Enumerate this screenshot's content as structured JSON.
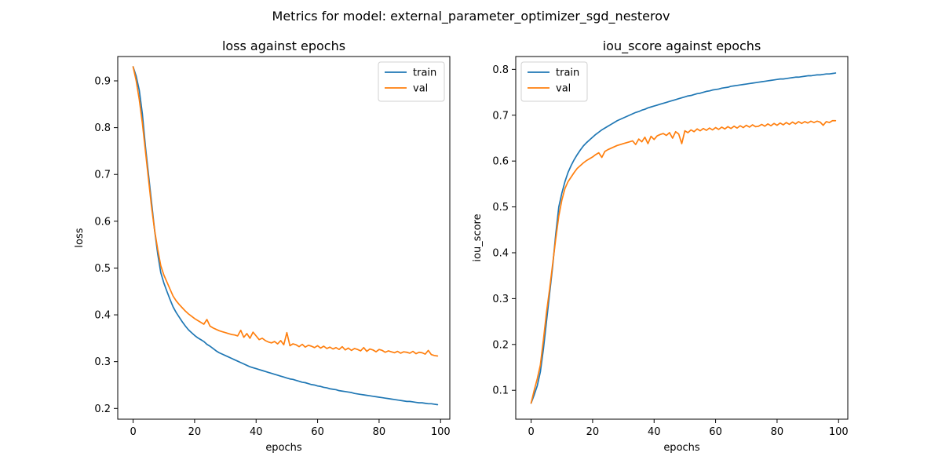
{
  "figure": {
    "suptitle": "Metrics for model: external_parameter_optimizer_sgd_nesterov"
  },
  "chart_data": [
    {
      "type": "line",
      "title": "loss against epochs",
      "xlabel": "epochs",
      "ylabel": "loss",
      "xlim": [
        -5,
        103
      ],
      "ylim": [
        0.177,
        0.952
      ],
      "xticks": [
        0,
        20,
        40,
        60,
        80,
        100
      ],
      "yticks": [
        0.2,
        0.3,
        0.4,
        0.5,
        0.6,
        0.7,
        0.8,
        0.9
      ],
      "legend_position": "upper right",
      "grid": false,
      "series": [
        {
          "name": "train",
          "color": "#1f77b4",
          "x": [
            0,
            1,
            2,
            3,
            4,
            5,
            6,
            7,
            8,
            9,
            10,
            11,
            12,
            13,
            14,
            15,
            16,
            17,
            18,
            19,
            20,
            21,
            22,
            23,
            24,
            25,
            26,
            27,
            28,
            29,
            30,
            31,
            32,
            33,
            34,
            35,
            36,
            37,
            38,
            39,
            40,
            41,
            42,
            43,
            44,
            45,
            46,
            47,
            48,
            49,
            50,
            51,
            52,
            53,
            54,
            55,
            56,
            57,
            58,
            59,
            60,
            61,
            62,
            63,
            64,
            65,
            66,
            67,
            68,
            69,
            70,
            71,
            72,
            73,
            74,
            75,
            76,
            77,
            78,
            79,
            80,
            81,
            82,
            83,
            84,
            85,
            86,
            87,
            88,
            89,
            90,
            91,
            92,
            93,
            94,
            95,
            96,
            97,
            98,
            99
          ],
          "values": [
            0.93,
            0.91,
            0.88,
            0.83,
            0.76,
            0.7,
            0.64,
            0.58,
            0.53,
            0.49,
            0.468,
            0.45,
            0.433,
            0.417,
            0.405,
            0.395,
            0.385,
            0.376,
            0.368,
            0.362,
            0.356,
            0.351,
            0.347,
            0.343,
            0.337,
            0.333,
            0.328,
            0.323,
            0.319,
            0.316,
            0.313,
            0.31,
            0.307,
            0.304,
            0.301,
            0.298,
            0.295,
            0.292,
            0.289,
            0.287,
            0.285,
            0.283,
            0.281,
            0.279,
            0.277,
            0.275,
            0.273,
            0.271,
            0.269,
            0.267,
            0.265,
            0.263,
            0.262,
            0.26,
            0.258,
            0.256,
            0.255,
            0.253,
            0.251,
            0.25,
            0.248,
            0.247,
            0.245,
            0.244,
            0.242,
            0.241,
            0.24,
            0.238,
            0.237,
            0.236,
            0.235,
            0.234,
            0.232,
            0.231,
            0.23,
            0.229,
            0.228,
            0.227,
            0.226,
            0.225,
            0.224,
            0.223,
            0.222,
            0.221,
            0.22,
            0.219,
            0.218,
            0.217,
            0.216,
            0.215,
            0.215,
            0.214,
            0.213,
            0.212,
            0.212,
            0.211,
            0.21,
            0.21,
            0.209,
            0.208
          ]
        },
        {
          "name": "val",
          "color": "#ff7f0e",
          "x": [
            0,
            1,
            2,
            3,
            4,
            5,
            6,
            7,
            8,
            9,
            10,
            11,
            12,
            13,
            14,
            15,
            16,
            17,
            18,
            19,
            20,
            21,
            22,
            23,
            24,
            25,
            26,
            27,
            28,
            29,
            30,
            31,
            32,
            33,
            34,
            35,
            36,
            37,
            38,
            39,
            40,
            41,
            42,
            43,
            44,
            45,
            46,
            47,
            48,
            49,
            50,
            51,
            52,
            53,
            54,
            55,
            56,
            57,
            58,
            59,
            60,
            61,
            62,
            63,
            64,
            65,
            66,
            67,
            68,
            69,
            70,
            71,
            72,
            73,
            74,
            75,
            76,
            77,
            78,
            79,
            80,
            81,
            82,
            83,
            84,
            85,
            86,
            87,
            88,
            89,
            90,
            91,
            92,
            93,
            94,
            95,
            96,
            97,
            98,
            99
          ],
          "values": [
            0.93,
            0.9,
            0.86,
            0.81,
            0.75,
            0.69,
            0.63,
            0.58,
            0.54,
            0.505,
            0.485,
            0.47,
            0.455,
            0.44,
            0.43,
            0.422,
            0.415,
            0.408,
            0.402,
            0.397,
            0.392,
            0.388,
            0.384,
            0.38,
            0.39,
            0.376,
            0.372,
            0.369,
            0.366,
            0.364,
            0.362,
            0.36,
            0.358,
            0.357,
            0.355,
            0.367,
            0.352,
            0.36,
            0.35,
            0.363,
            0.355,
            0.347,
            0.35,
            0.345,
            0.342,
            0.34,
            0.343,
            0.338,
            0.345,
            0.336,
            0.362,
            0.334,
            0.338,
            0.336,
            0.332,
            0.337,
            0.331,
            0.335,
            0.333,
            0.33,
            0.334,
            0.329,
            0.333,
            0.328,
            0.331,
            0.327,
            0.33,
            0.326,
            0.332,
            0.325,
            0.329,
            0.324,
            0.328,
            0.326,
            0.323,
            0.33,
            0.322,
            0.327,
            0.325,
            0.321,
            0.326,
            0.324,
            0.32,
            0.323,
            0.321,
            0.319,
            0.322,
            0.318,
            0.321,
            0.32,
            0.318,
            0.322,
            0.317,
            0.32,
            0.319,
            0.316,
            0.324,
            0.315,
            0.313,
            0.312
          ]
        }
      ]
    },
    {
      "type": "line",
      "title": "iou_score against epochs",
      "xlabel": "epochs",
      "ylabel": "iou_score",
      "xlim": [
        -5,
        103
      ],
      "ylim": [
        0.037,
        0.828
      ],
      "xticks": [
        0,
        20,
        40,
        60,
        80,
        100
      ],
      "yticks": [
        0.1,
        0.2,
        0.3,
        0.4,
        0.5,
        0.6,
        0.7,
        0.8
      ],
      "legend_position": "upper left",
      "grid": false,
      "series": [
        {
          "name": "train",
          "color": "#1f77b4",
          "x": [
            0,
            1,
            2,
            3,
            4,
            5,
            6,
            7,
            8,
            9,
            10,
            11,
            12,
            13,
            14,
            15,
            16,
            17,
            18,
            19,
            20,
            21,
            22,
            23,
            24,
            25,
            26,
            27,
            28,
            29,
            30,
            31,
            32,
            33,
            34,
            35,
            36,
            37,
            38,
            39,
            40,
            41,
            42,
            43,
            44,
            45,
            46,
            47,
            48,
            49,
            50,
            51,
            52,
            53,
            54,
            55,
            56,
            57,
            58,
            59,
            60,
            61,
            62,
            63,
            64,
            65,
            66,
            67,
            68,
            69,
            70,
            71,
            72,
            73,
            74,
            75,
            76,
            77,
            78,
            79,
            80,
            81,
            82,
            83,
            84,
            85,
            86,
            87,
            88,
            89,
            90,
            91,
            92,
            93,
            94,
            95,
            96,
            97,
            98,
            99
          ],
          "values": [
            0.072,
            0.09,
            0.11,
            0.14,
            0.19,
            0.25,
            0.31,
            0.37,
            0.44,
            0.5,
            0.53,
            0.555,
            0.575,
            0.59,
            0.603,
            0.614,
            0.624,
            0.633,
            0.64,
            0.646,
            0.652,
            0.658,
            0.663,
            0.668,
            0.672,
            0.676,
            0.68,
            0.684,
            0.688,
            0.691,
            0.694,
            0.697,
            0.7,
            0.703,
            0.706,
            0.708,
            0.711,
            0.713,
            0.716,
            0.718,
            0.72,
            0.722,
            0.724,
            0.726,
            0.728,
            0.73,
            0.732,
            0.734,
            0.736,
            0.738,
            0.74,
            0.742,
            0.743,
            0.745,
            0.747,
            0.748,
            0.75,
            0.752,
            0.753,
            0.755,
            0.756,
            0.757,
            0.759,
            0.76,
            0.761,
            0.763,
            0.764,
            0.765,
            0.766,
            0.767,
            0.768,
            0.769,
            0.77,
            0.771,
            0.772,
            0.773,
            0.774,
            0.775,
            0.776,
            0.777,
            0.778,
            0.779,
            0.779,
            0.78,
            0.781,
            0.782,
            0.783,
            0.783,
            0.784,
            0.785,
            0.786,
            0.786,
            0.787,
            0.788,
            0.788,
            0.789,
            0.79,
            0.79,
            0.791,
            0.792
          ]
        },
        {
          "name": "val",
          "color": "#ff7f0e",
          "x": [
            0,
            1,
            2,
            3,
            4,
            5,
            6,
            7,
            8,
            9,
            10,
            11,
            12,
            13,
            14,
            15,
            16,
            17,
            18,
            19,
            20,
            21,
            22,
            23,
            24,
            25,
            26,
            27,
            28,
            29,
            30,
            31,
            32,
            33,
            34,
            35,
            36,
            37,
            38,
            39,
            40,
            41,
            42,
            43,
            44,
            45,
            46,
            47,
            48,
            49,
            50,
            51,
            52,
            53,
            54,
            55,
            56,
            57,
            58,
            59,
            60,
            61,
            62,
            63,
            64,
            65,
            66,
            67,
            68,
            69,
            70,
            71,
            72,
            73,
            74,
            75,
            76,
            77,
            78,
            79,
            80,
            81,
            82,
            83,
            84,
            85,
            86,
            87,
            88,
            89,
            90,
            91,
            92,
            93,
            94,
            95,
            96,
            97,
            98,
            99
          ],
          "values": [
            0.072,
            0.1,
            0.125,
            0.155,
            0.21,
            0.27,
            0.32,
            0.375,
            0.43,
            0.48,
            0.515,
            0.54,
            0.555,
            0.565,
            0.575,
            0.584,
            0.59,
            0.596,
            0.601,
            0.605,
            0.609,
            0.614,
            0.618,
            0.608,
            0.621,
            0.625,
            0.628,
            0.631,
            0.634,
            0.636,
            0.638,
            0.64,
            0.642,
            0.644,
            0.636,
            0.648,
            0.642,
            0.652,
            0.638,
            0.654,
            0.647,
            0.655,
            0.658,
            0.66,
            0.656,
            0.662,
            0.65,
            0.664,
            0.659,
            0.638,
            0.666,
            0.662,
            0.668,
            0.664,
            0.67,
            0.666,
            0.671,
            0.667,
            0.672,
            0.668,
            0.673,
            0.669,
            0.674,
            0.67,
            0.675,
            0.671,
            0.676,
            0.672,
            0.677,
            0.673,
            0.678,
            0.674,
            0.679,
            0.675,
            0.676,
            0.68,
            0.676,
            0.681,
            0.677,
            0.682,
            0.678,
            0.683,
            0.679,
            0.684,
            0.68,
            0.685,
            0.681,
            0.686,
            0.682,
            0.686,
            0.683,
            0.687,
            0.684,
            0.687,
            0.685,
            0.678,
            0.686,
            0.684,
            0.688,
            0.688
          ]
        }
      ]
    }
  ]
}
